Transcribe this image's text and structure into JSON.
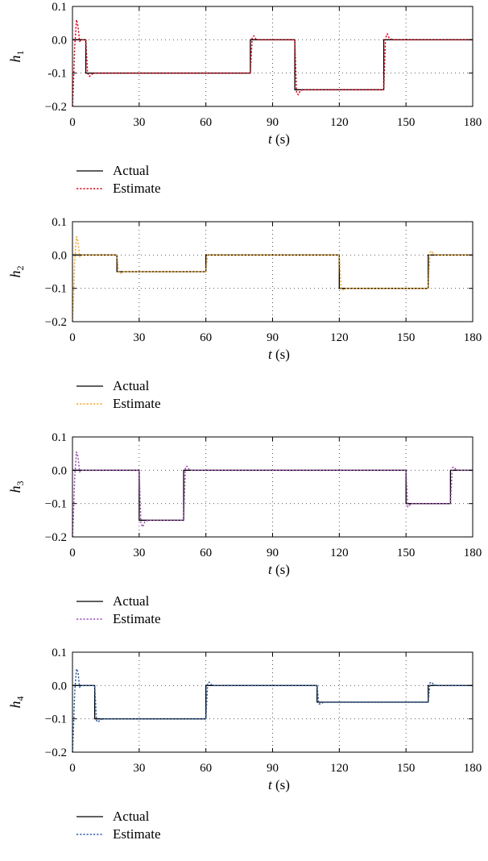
{
  "chart_data": [
    {
      "type": "line",
      "ylabel": {
        "symbol": "h",
        "subscript": "1"
      },
      "xlabel": {
        "var": "t",
        "unit": " (s)"
      },
      "xlim": [
        0,
        180
      ],
      "ylim": [
        -0.2,
        0.1
      ],
      "xticks": [
        0,
        30,
        60,
        90,
        120,
        150,
        180
      ],
      "xtick_labels": [
        "0",
        "30",
        "60",
        "90",
        "120",
        "150",
        "180"
      ],
      "yticks": [
        0.1,
        0.0,
        -0.1,
        -0.2
      ],
      "ytick_labels": [
        "0.1",
        "0.0",
        "-0.1",
        "−0.2"
      ],
      "grid": true,
      "legend_position": "below",
      "series": [
        {
          "name": "Actual",
          "color": "#000000",
          "style": "solid",
          "x": [
            0,
            6,
            6,
            80,
            80,
            100,
            100,
            140,
            140,
            180
          ],
          "y": [
            0,
            0,
            -0.1,
            -0.1,
            0,
            0,
            -0.15,
            -0.15,
            0,
            0
          ]
        },
        {
          "name": "Estimate",
          "color": "#e3001b",
          "style": "dotted",
          "x": [
            0,
            0.4,
            1,
            1.8,
            2.5,
            3.2,
            4,
            6,
            6.8,
            7.6,
            8.5,
            9.5,
            11,
            80,
            80.8,
            81.6,
            82.5,
            84,
            100,
            100.8,
            101.6,
            102.5,
            104,
            140,
            140.8,
            141.6,
            142.5,
            144,
            180
          ],
          "y": [
            -0.2,
            -0.14,
            -0.02,
            0.06,
            0.04,
            -0.005,
            0,
            0,
            -0.1,
            -0.11,
            -0.105,
            -0.1,
            -0.1,
            -0.1,
            0.005,
            0.012,
            0.002,
            0,
            0,
            -0.16,
            -0.165,
            -0.152,
            -0.15,
            -0.15,
            0.005,
            0.018,
            0.004,
            0,
            0
          ]
        }
      ]
    },
    {
      "type": "line",
      "ylabel": {
        "symbol": "h",
        "subscript": "2"
      },
      "xlabel": {
        "var": "t",
        "unit": " (s)"
      },
      "xlim": [
        0,
        180
      ],
      "ylim": [
        -0.2,
        0.1
      ],
      "xticks": [
        0,
        30,
        60,
        90,
        120,
        150,
        180
      ],
      "xtick_labels": [
        "0",
        "30",
        "60",
        "90",
        "120",
        "150",
        "180"
      ],
      "yticks": [
        0.1,
        0.0,
        -0.1,
        -0.2
      ],
      "ytick_labels": [
        "0.1",
        "0.0",
        "−0.1",
        "−0.2"
      ],
      "grid": true,
      "legend_position": "below",
      "series": [
        {
          "name": "Actual",
          "color": "#000000",
          "style": "solid",
          "x": [
            0,
            20,
            20,
            60,
            60,
            120,
            120,
            160,
            160,
            180
          ],
          "y": [
            0,
            0,
            -0.05,
            -0.05,
            0,
            0,
            -0.1,
            -0.1,
            0,
            0
          ]
        },
        {
          "name": "Estimate",
          "color": "#f5a623",
          "style": "dotted",
          "x": [
            0,
            0.4,
            1,
            1.8,
            2.5,
            3.2,
            4,
            20,
            20.8,
            21.6,
            23,
            60,
            60.8,
            61.6,
            63,
            120,
            120.8,
            121.6,
            123,
            160,
            160.8,
            161.6,
            162.5,
            164,
            180
          ],
          "y": [
            -0.2,
            -0.14,
            -0.02,
            0.055,
            0.04,
            -0.005,
            0,
            0,
            -0.05,
            -0.055,
            -0.05,
            -0.05,
            0.002,
            0,
            0,
            0,
            -0.1,
            -0.105,
            -0.1,
            -0.1,
            0.008,
            0.012,
            0.002,
            0,
            0
          ]
        }
      ]
    },
    {
      "type": "line",
      "ylabel": {
        "symbol": "h",
        "subscript": "3"
      },
      "xlabel": {
        "var": "t",
        "unit": " (s)"
      },
      "xlim": [
        0,
        180
      ],
      "ylim": [
        -0.2,
        0.1
      ],
      "xticks": [
        0,
        30,
        60,
        90,
        120,
        150,
        180
      ],
      "xtick_labels": [
        "0",
        "30",
        "60",
        "90",
        "120",
        "150",
        "180"
      ],
      "yticks": [
        0.1,
        0.0,
        -0.1,
        -0.2
      ],
      "ytick_labels": [
        "0.1",
        "0.0",
        "−0.1",
        "−0.2"
      ],
      "grid": true,
      "legend_position": "below",
      "series": [
        {
          "name": "Actual",
          "color": "#000000",
          "style": "solid",
          "x": [
            0,
            30,
            30,
            50,
            50,
            150,
            150,
            170,
            170,
            180
          ],
          "y": [
            0,
            0,
            -0.15,
            -0.15,
            0,
            0,
            -0.1,
            -0.1,
            0,
            0
          ]
        },
        {
          "name": "Estimate",
          "color": "#a34bb5",
          "style": "dotted",
          "x": [
            0,
            0.4,
            1,
            1.8,
            2.5,
            3.2,
            4,
            30,
            30.8,
            31.6,
            32.5,
            34,
            50,
            50.8,
            51.6,
            52.5,
            54,
            150,
            150.8,
            151.6,
            152.5,
            154,
            170,
            170.8,
            171.6,
            172.5,
            174,
            180
          ],
          "y": [
            -0.2,
            -0.14,
            -0.02,
            0.055,
            0.04,
            -0.005,
            0,
            0,
            -0.16,
            -0.17,
            -0.155,
            -0.15,
            -0.15,
            0.01,
            0.012,
            0.002,
            0,
            0,
            -0.11,
            -0.105,
            -0.1,
            -0.1,
            -0.1,
            0.008,
            0.01,
            0.002,
            0,
            0
          ]
        }
      ]
    },
    {
      "type": "line",
      "ylabel": {
        "symbol": "h",
        "subscript": "4"
      },
      "xlabel": {
        "var": "t",
        "unit": " (s)"
      },
      "xlim": [
        0,
        180
      ],
      "ylim": [
        -0.2,
        0.1
      ],
      "xticks": [
        0,
        30,
        60,
        90,
        120,
        150,
        180
      ],
      "xtick_labels": [
        "0",
        "30",
        "60",
        "90",
        "120",
        "150",
        "180"
      ],
      "yticks": [
        0.1,
        0.0,
        -0.1,
        -0.2
      ],
      "ytick_labels": [
        "0.1",
        "0.0",
        "−0.1",
        "−0.2"
      ],
      "grid": true,
      "legend_position": "below",
      "series": [
        {
          "name": "Actual",
          "color": "#000000",
          "style": "solid",
          "x": [
            0,
            10,
            10,
            60,
            60,
            110,
            110,
            160,
            160,
            180
          ],
          "y": [
            0,
            0,
            -0.1,
            -0.1,
            0,
            0,
            -0.05,
            -0.05,
            0,
            0
          ]
        },
        {
          "name": "Estimate",
          "color": "#2b5fa8",
          "style": "dotted",
          "x": [
            0,
            0.4,
            1,
            1.8,
            2.5,
            3.2,
            4,
            10,
            10.8,
            11.6,
            12.5,
            14,
            60,
            60.8,
            61.6,
            62.5,
            64,
            110,
            110.8,
            111.6,
            113,
            160,
            160.8,
            161.6,
            162.5,
            164,
            180
          ],
          "y": [
            -0.2,
            -0.14,
            -0.02,
            0.05,
            0.04,
            -0.005,
            0,
            0,
            -0.105,
            -0.11,
            -0.102,
            -0.1,
            -0.1,
            0.008,
            0.01,
            0.002,
            0,
            0,
            -0.055,
            -0.055,
            -0.05,
            -0.05,
            0.008,
            0.01,
            0.002,
            0,
            0
          ]
        }
      ]
    }
  ]
}
